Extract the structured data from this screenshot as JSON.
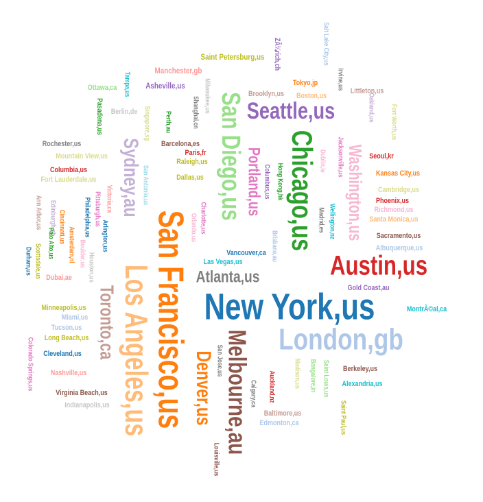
{
  "palette": {
    "blue": "#1f77b4",
    "lightblue": "#aec7e8",
    "orange": "#ff7f0e",
    "peach": "#ffbb78",
    "green": "#2ca02c",
    "lightgreen": "#98df8a",
    "red": "#d62728",
    "pink": "#ff9896",
    "purple": "#9467bd",
    "lavender": "#c5b0d5",
    "brown": "#8c564b",
    "tan": "#c49c94",
    "magenta": "#e377c2",
    "lightpink": "#f7b6d2",
    "gray": "#7f7f7f",
    "silver": "#c7c7c7",
    "olive": "#bcbd22",
    "khaki": "#dbdb8d",
    "cyan": "#17becf",
    "lightcyan": "#9edae5"
  },
  "words": [
    {
      "text": "New York,us",
      "color": "blue",
      "weight": 60
    },
    {
      "text": "San Francisco,us",
      "color": "orange",
      "weight": 58
    },
    {
      "text": "Los Angeles,us",
      "color": "peach",
      "weight": 52
    },
    {
      "text": "London,gb",
      "color": "lightblue",
      "weight": 50
    },
    {
      "text": "Chicago,us",
      "color": "green",
      "weight": 46
    },
    {
      "text": "Austin,us",
      "color": "red",
      "weight": 44
    },
    {
      "text": "San Diego,us",
      "color": "lightgreen",
      "weight": 42
    },
    {
      "text": "Melbourne,au",
      "color": "brown",
      "weight": 40
    },
    {
      "text": "Seattle,us",
      "color": "purple",
      "weight": 38
    },
    {
      "text": "Sydney,au",
      "color": "lavender",
      "weight": 36
    },
    {
      "text": "Denver,us",
      "color": "orange",
      "weight": 35
    },
    {
      "text": "Toronto,ca",
      "color": "tan",
      "weight": 32
    },
    {
      "text": "Washington,us",
      "color": "lightpink",
      "weight": 30
    },
    {
      "text": "Portland,us",
      "color": "magenta",
      "weight": 28
    },
    {
      "text": "Atlanta,us",
      "color": "gray",
      "weight": 26
    },
    {
      "text": "Saint Petersburg,us",
      "color": "olive",
      "weight": 10
    },
    {
      "text": "ZÃ¼rich,ch",
      "color": "purple",
      "weight": 10
    },
    {
      "text": "Salt Lake City,us",
      "color": "lightblue",
      "weight": 9
    },
    {
      "text": "Irvine,us",
      "color": "gray",
      "weight": 9
    },
    {
      "text": "Manchester,gb",
      "color": "pink",
      "weight": 10
    },
    {
      "text": "Tampa,us",
      "color": "cyan",
      "weight": 9
    },
    {
      "text": "Asheville,us",
      "color": "purple",
      "weight": 10
    },
    {
      "text": "Milwaukee,us",
      "color": "silver",
      "weight": 9
    },
    {
      "text": "Tokyo,jp",
      "color": "orange",
      "weight": 10
    },
    {
      "text": "Ottawa,ca",
      "color": "lightgreen",
      "weight": 10
    },
    {
      "text": "Singapore,sg",
      "color": "khaki",
      "weight": 9
    },
    {
      "text": "Shanghai,cn",
      "color": "gray",
      "weight": 9
    },
    {
      "text": "Brooklyn,us",
      "color": "tan",
      "weight": 10
    },
    {
      "text": "Boston,us",
      "color": "peach",
      "weight": 10
    },
    {
      "text": "Littleton,us",
      "color": "tan",
      "weight": 10
    },
    {
      "text": "Oakland,us",
      "color": "lavender",
      "weight": 9
    },
    {
      "text": "Fort Worth,us",
      "color": "khaki",
      "weight": 9
    },
    {
      "text": "Pasadena,us",
      "color": "green",
      "weight": 10
    },
    {
      "text": "Berlin,de",
      "color": "silver",
      "weight": 10
    },
    {
      "text": "Perth,au",
      "color": "green",
      "weight": 9
    },
    {
      "text": "Barcelona,es",
      "color": "brown",
      "weight": 10
    },
    {
      "text": "Paris,fr",
      "color": "red",
      "weight": 10
    },
    {
      "text": "Raleigh,us",
      "color": "olive",
      "weight": 10
    },
    {
      "text": "Rochester,us",
      "color": "gray",
      "weight": 10
    },
    {
      "text": "Dublin,ie",
      "color": "lightpink",
      "weight": 9
    },
    {
      "text": "Jacksonville,us",
      "color": "magenta",
      "weight": 9
    },
    {
      "text": "Seoul,kr",
      "color": "red",
      "weight": 10
    },
    {
      "text": "Mountain View,us",
      "color": "khaki",
      "weight": 10
    },
    {
      "text": "Columbus,us",
      "color": "purple",
      "weight": 9
    },
    {
      "text": "Columbia,us",
      "color": "red",
      "weight": 10
    },
    {
      "text": "San Antonio,us",
      "color": "lightcyan",
      "weight": 9
    },
    {
      "text": "Hong Kong,hk",
      "color": "green",
      "weight": 9
    },
    {
      "text": "Kansas City,us",
      "color": "orange",
      "weight": 10
    },
    {
      "text": "Fort Lauderdale,us",
      "color": "khaki",
      "weight": 10
    },
    {
      "text": "Dallas,us",
      "color": "olive",
      "weight": 10
    },
    {
      "text": "Cambridge,us",
      "color": "khaki",
      "weight": 10
    },
    {
      "text": "Ann Arbor,us",
      "color": "tan",
      "weight": 9
    },
    {
      "text": "Edinburgh,gb",
      "color": "lavender",
      "weight": 9
    },
    {
      "text": "Victoria,ca",
      "color": "pink",
      "weight": 9
    },
    {
      "text": "Pittsburgh,us",
      "color": "magenta",
      "weight": 9
    },
    {
      "text": "Philadelphia,us",
      "color": "blue",
      "weight": 9
    },
    {
      "text": "Phoenix,us",
      "color": "red",
      "weight": 10
    },
    {
      "text": "Wellington,nz",
      "color": "cyan",
      "weight": 9
    },
    {
      "text": "Richmond,us",
      "color": "lightpink",
      "weight": 10
    },
    {
      "text": "Madrid,es",
      "color": "gray",
      "weight": 9
    },
    {
      "text": "Santa Monica,us",
      "color": "peach",
      "weight": 10
    },
    {
      "text": "Cincinnati,us",
      "color": "orange",
      "weight": 9
    },
    {
      "text": "Arlington,us",
      "color": "blue",
      "weight": 9
    },
    {
      "text": "Charlotte,us",
      "color": "magenta",
      "weight": 9
    },
    {
      "text": "Orlando,us",
      "color": "lightpink",
      "weight": 9
    },
    {
      "text": "Sacramento,us",
      "color": "brown",
      "weight": 10
    },
    {
      "text": "Palo Alto,us",
      "color": "green",
      "weight": 9
    },
    {
      "text": "Amsterdam,nl",
      "color": "orange",
      "weight": 9
    },
    {
      "text": "Brisbane,au",
      "color": "lightblue",
      "weight": 9
    },
    {
      "text": "Vancouver,ca",
      "color": "blue",
      "weight": 10
    },
    {
      "text": "Las Vegas,us",
      "color": "cyan",
      "weight": 10
    },
    {
      "text": "Albuquerque,us",
      "color": "lightblue",
      "weight": 10
    },
    {
      "text": "Scottsdale,us",
      "color": "olive",
      "weight": 9
    },
    {
      "text": "Durham,us",
      "color": "blue",
      "weight": 9
    },
    {
      "text": "Boulder,us",
      "color": "lightpink",
      "weight": 9
    },
    {
      "text": "Houston,us",
      "color": "silver",
      "weight": 9
    },
    {
      "text": "Dubai,ae",
      "color": "pink",
      "weight": 10
    },
    {
      "text": "Gold Coast,au",
      "color": "purple",
      "weight": 10
    },
    {
      "text": "Minneapolis,us",
      "color": "olive",
      "weight": 10
    },
    {
      "text": "MontrÃ©al,ca",
      "color": "cyan",
      "weight": 10
    },
    {
      "text": "Miami,us",
      "color": "lightblue",
      "weight": 10
    },
    {
      "text": "Tucson,us",
      "color": "lightblue",
      "weight": 10
    },
    {
      "text": "Colorado Springs,us",
      "color": "magenta",
      "weight": 9
    },
    {
      "text": "Long Beach,us",
      "color": "olive",
      "weight": 10
    },
    {
      "text": "San Jose,us",
      "color": "gray",
      "weight": 9
    },
    {
      "text": "Cleveland,us",
      "color": "blue",
      "weight": 10
    },
    {
      "text": "Auckland,nz",
      "color": "red",
      "weight": 9
    },
    {
      "text": "Madison,us",
      "color": "khaki",
      "weight": 9
    },
    {
      "text": "Bangalore,in",
      "color": "lightgreen",
      "weight": 9
    },
    {
      "text": "Saint Louis,us",
      "color": "lightgreen",
      "weight": 9
    },
    {
      "text": "Berkeley,us",
      "color": "brown",
      "weight": 10
    },
    {
      "text": "Nashville,us",
      "color": "pink",
      "weight": 10
    },
    {
      "text": "Calgary,ca",
      "color": "gray",
      "weight": 9
    },
    {
      "text": "Alexandria,us",
      "color": "cyan",
      "weight": 10
    },
    {
      "text": "Virginia Beach,us",
      "color": "brown",
      "weight": 10
    },
    {
      "text": "Baltimore,us",
      "color": "tan",
      "weight": 10
    },
    {
      "text": "Indianapolis,us",
      "color": "silver",
      "weight": 10
    },
    {
      "text": "Edmonton,ca",
      "color": "lightblue",
      "weight": 10
    },
    {
      "text": "Louisville,us",
      "color": "brown",
      "weight": 9
    },
    {
      "text": "Saint Paul,us",
      "color": "olive",
      "weight": 9
    }
  ]
}
